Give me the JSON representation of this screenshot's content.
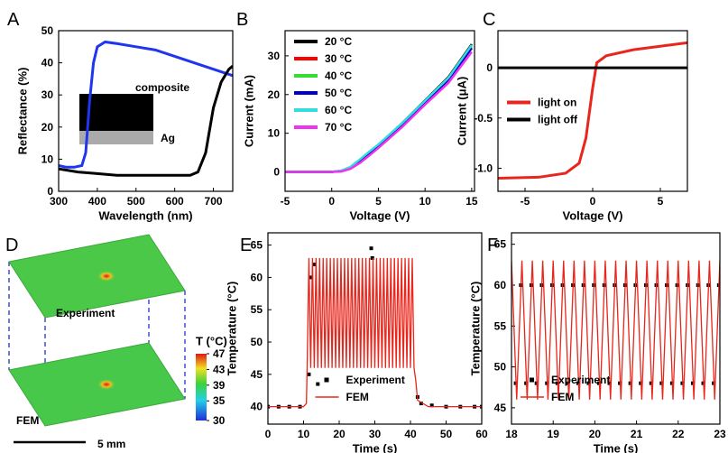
{
  "chart_data": [
    {
      "type": "line",
      "panel": "A",
      "xlabel": "Wavelength (nm)",
      "ylabel": "Reflectance (%)",
      "xlim": [
        300,
        750
      ],
      "xticks": [
        300,
        400,
        500,
        600,
        700
      ],
      "ylim": [
        0,
        50
      ],
      "yticks": [
        0,
        10,
        20,
        30,
        40,
        50
      ],
      "annotations": [
        "composite",
        "Ag"
      ],
      "series": [
        {
          "color": "#1f35f0",
          "x": [
            300,
            320,
            340,
            360,
            370,
            380,
            390,
            400,
            420,
            450,
            500,
            550,
            600,
            650,
            700,
            750
          ],
          "values": [
            8,
            7.5,
            7.5,
            8,
            12,
            28,
            40,
            45,
            46.5,
            46,
            45,
            44,
            42,
            40,
            38,
            36
          ]
        },
        {
          "color": "#000000",
          "x": [
            300,
            350,
            400,
            450,
            500,
            550,
            600,
            640,
            660,
            680,
            700,
            720,
            740,
            750
          ],
          "values": [
            7,
            6,
            5.5,
            5,
            5,
            5,
            5,
            5,
            6,
            12,
            26,
            34,
            38,
            39
          ]
        }
      ]
    },
    {
      "type": "line",
      "panel": "B",
      "xlabel": "Voltage (V)",
      "ylabel": "Current (mA)",
      "xlim": [
        -5,
        15.3
      ],
      "xticks": [
        -5,
        0,
        5,
        10,
        15
      ],
      "ylim": [
        -5,
        36.5
      ],
      "yticks": [
        0,
        10,
        20,
        30
      ],
      "legend": "upper left",
      "x": [
        -5,
        0,
        1,
        2,
        3,
        4,
        5,
        7.5,
        10,
        12.5,
        15
      ],
      "series": [
        {
          "name": "20 °C",
          "color": "#000000",
          "values": [
            0,
            0,
            0.3,
            1.2,
            3,
            5,
            7,
            12.5,
            18.5,
            24.5,
            33
          ]
        },
        {
          "name": "30 °C",
          "color": "#ff0000",
          "values": [
            0,
            0,
            0.2,
            1,
            2.6,
            4.6,
            6.6,
            12,
            18,
            24,
            32
          ]
        },
        {
          "name": "40 °C",
          "color": "#33dd33",
          "values": [
            0,
            0,
            0.3,
            1.1,
            2.9,
            4.9,
            6.9,
            12.4,
            18.3,
            24.2,
            32.5
          ]
        },
        {
          "name": "50 °C",
          "color": "#0000cc",
          "values": [
            0,
            0,
            0.2,
            1,
            2.7,
            4.7,
            6.7,
            12.1,
            18,
            23.8,
            32
          ]
        },
        {
          "name": "60 °C",
          "color": "#33dddd",
          "values": [
            0,
            0,
            0.3,
            1.3,
            3.2,
            5.2,
            7.1,
            12.5,
            18.4,
            24.3,
            32.8
          ]
        },
        {
          "name": "70 °C",
          "color": "#ee33ee",
          "values": [
            0,
            0,
            0.1,
            0.8,
            2.3,
            4.2,
            6.2,
            11.5,
            17.4,
            23,
            31
          ]
        }
      ]
    },
    {
      "type": "line",
      "panel": "C",
      "xlabel": "Voltage (V)",
      "ylabel": "Current (μA)",
      "xlim": [
        -7,
        7
      ],
      "xticks": [
        -5,
        0,
        5
      ],
      "ylim": [
        -1.23,
        0.37
      ],
      "yticks": [
        {
          "value": -1,
          "label": "-1.0"
        },
        -0.5,
        0
      ],
      "legend": "center left",
      "series": [
        {
          "name": "light on",
          "color": "#e8261c",
          "x": [
            -7,
            -4,
            -2,
            -1,
            -0.5,
            0,
            0.3,
            1,
            3,
            7
          ],
          "values": [
            -1.1,
            -1.09,
            -1.05,
            -0.95,
            -0.7,
            -0.2,
            0.05,
            0.12,
            0.18,
            0.25
          ]
        },
        {
          "name": "light off",
          "color": "#000000",
          "x": [
            -7,
            7
          ],
          "values": [
            0,
            0
          ]
        }
      ]
    },
    {
      "type": "heatmap",
      "panel": "D",
      "colorbar_label": "T (°C)",
      "colorbar_lim": [
        30,
        47
      ],
      "colorbar_ticks": [
        30,
        35,
        39,
        43,
        47
      ],
      "annotations": [
        "Experiment",
        "FEM"
      ],
      "scale_bar": "5 mm"
    },
    {
      "type": "line",
      "panel": "E",
      "xlabel": "Time (s)",
      "ylabel": "Temperature (°C)",
      "xlim": [
        0,
        60
      ],
      "xticks": [
        0,
        10,
        20,
        30,
        40,
        50,
        60
      ],
      "ylim": [
        37.3,
        66.9
      ],
      "yticks": [
        40,
        45,
        50,
        55,
        60,
        65
      ],
      "legend": "lower center",
      "series": [
        {
          "name": "Experiment",
          "color": "#000000",
          "style": "markers",
          "x": [
            0,
            3,
            6,
            9,
            11.5,
            12,
            13,
            14,
            29,
            29.3,
            42,
            43,
            46,
            50,
            54,
            58,
            60
          ],
          "values": [
            40,
            40,
            40,
            40,
            45,
            60,
            62,
            43.5,
            64.5,
            63,
            41.5,
            40.5,
            40.2,
            40,
            40,
            40,
            40
          ]
        },
        {
          "name": "FEM",
          "color": "#e8261c",
          "x": [
            0,
            10,
            10.8,
            11,
            11.5,
            12,
            12.5,
            13,
            13.5,
            14,
            14.5,
            15,
            15.5,
            16,
            16.5,
            17,
            17.5,
            18,
            18.5,
            19,
            19.5,
            20,
            20.5,
            21,
            21.5,
            22,
            22.5,
            23,
            23.5,
            24,
            24.5,
            25,
            25.5,
            26,
            26.5,
            27,
            27.5,
            28,
            28.5,
            29,
            29.5,
            30,
            30.5,
            31,
            31.5,
            32,
            32.5,
            33,
            33.5,
            34,
            34.5,
            35,
            35.5,
            36,
            36.5,
            37,
            37.5,
            38,
            38.5,
            39,
            39.5,
            40,
            40.5,
            41,
            41.5,
            42,
            45,
            60
          ],
          "values": [
            40,
            40,
            40.5,
            46,
            63,
            46,
            63,
            46,
            63,
            46,
            63,
            46,
            63,
            46,
            63,
            46,
            63,
            46,
            63,
            46,
            63,
            46,
            63,
            46,
            63,
            46,
            63,
            46,
            63,
            46,
            63,
            46,
            63,
            46,
            63,
            46,
            63,
            46,
            63,
            46,
            63,
            46,
            63,
            46,
            63,
            46,
            63,
            46,
            63,
            46,
            63,
            46,
            63,
            46,
            63,
            46,
            63,
            46,
            63,
            46,
            63,
            46,
            63,
            46,
            44,
            41,
            40,
            40
          ]
        }
      ]
    },
    {
      "type": "line",
      "panel": "F",
      "xlabel": "Time (s)",
      "ylabel": "Temperature (°C)",
      "xlim": [
        18,
        23
      ],
      "xticks": [
        18,
        19,
        20,
        21,
        22,
        23
      ],
      "ylim": [
        43,
        66.4
      ],
      "yticks": [
        45,
        50,
        55,
        60,
        65
      ],
      "legend": "lower left",
      "series": [
        {
          "name": "Experiment",
          "color": "#000000",
          "style": "markers",
          "x": [
            18.1,
            18.225,
            18.35,
            18.475,
            18.6,
            18.725,
            18.85,
            18.975,
            19.1,
            19.225,
            19.35,
            19.475,
            19.6,
            19.725,
            19.85,
            19.975,
            20.1,
            20.225,
            20.35,
            20.475,
            20.6,
            20.725,
            20.85,
            20.975,
            21.1,
            21.225,
            21.35,
            21.475,
            21.6,
            21.725,
            21.85,
            21.975,
            22.1,
            22.225,
            22.35,
            22.475,
            22.6,
            22.725,
            22.85,
            22.975
          ],
          "values": [
            48,
            60,
            48,
            60,
            48,
            60,
            48,
            60,
            48,
            60,
            48,
            60,
            48,
            60,
            48,
            60,
            48,
            60,
            48,
            60,
            48,
            60,
            48,
            60,
            48,
            60,
            48,
            60,
            48,
            60,
            48,
            60,
            48,
            60,
            48,
            60,
            48,
            60,
            48,
            60
          ]
        },
        {
          "name": "FEM",
          "color": "#e8261c",
          "x": [
            18,
            18.125,
            18.25,
            18.375,
            18.5,
            18.625,
            18.75,
            18.875,
            19,
            19.125,
            19.25,
            19.375,
            19.5,
            19.625,
            19.75,
            19.875,
            20,
            20.125,
            20.25,
            20.375,
            20.5,
            20.625,
            20.75,
            20.875,
            21,
            21.125,
            21.25,
            21.375,
            21.5,
            21.625,
            21.75,
            21.875,
            22,
            22.125,
            22.25,
            22.375,
            22.5,
            22.625,
            22.75,
            22.875,
            23
          ],
          "values": [
            63,
            46,
            63,
            46,
            63,
            46,
            63,
            46,
            63,
            46,
            63,
            46,
            63,
            46,
            63,
            46,
            63,
            46,
            63,
            46,
            63,
            46,
            63,
            46,
            63,
            46,
            63,
            46,
            63,
            46,
            63,
            46,
            63,
            46,
            63,
            46,
            63,
            46,
            63,
            46,
            63
          ]
        }
      ]
    }
  ]
}
